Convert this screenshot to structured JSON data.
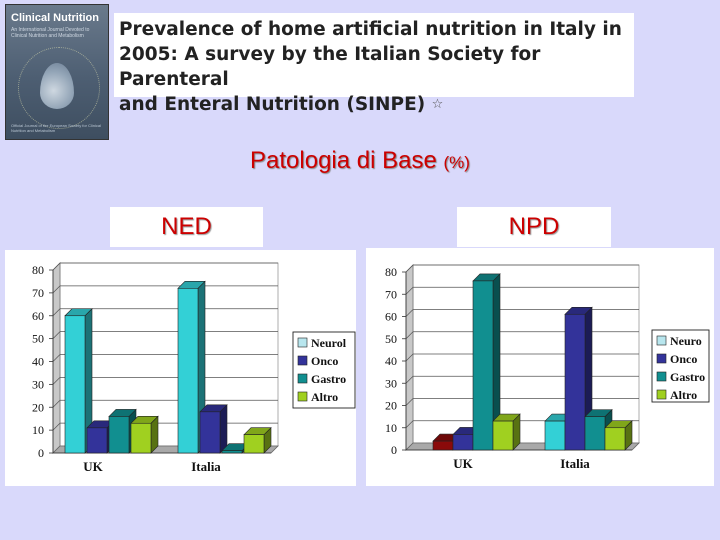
{
  "journal": {
    "title": "Clinical Nutrition",
    "subtitle": "An International Journal Devoted to Clinical Nutrition and Metabolism",
    "footer": "Official Journal of the European Society for Clinical Nutrition and Metabolism"
  },
  "header": {
    "title_lines": [
      "Prevalence of home artificial nutrition in Italy in",
      "2005: A survey by the Italian Society for Parenteral",
      "and Enteral Nutrition (SINPE)"
    ],
    "footnote_symbol": "☆"
  },
  "section": {
    "title": "Patologia di Base",
    "unit": "(%)"
  },
  "panels": {
    "left_label": "NED",
    "right_label": "NPD"
  },
  "colors": {
    "Neuro": "#b8e6ee",
    "Onco": "#33339a",
    "Gastro": "#118f90",
    "Altro": "#a0d020",
    "Dark red": "#8a0a0a",
    "Cyan": "#33d0d6"
  },
  "chart_data": [
    {
      "type": "bar",
      "categories": [
        "UK",
        "Italia"
      ],
      "legend": [
        "Neurol",
        "Onco",
        "Gastro",
        "Altro"
      ],
      "series": [
        {
          "values": [
            60,
            72
          ],
          "color_key": "Cyan"
        },
        {
          "values": [
            11,
            18
          ],
          "color_key": "Onco"
        },
        {
          "values": [
            16,
            1
          ],
          "color_key": "Gastro"
        },
        {
          "values": [
            13,
            8
          ],
          "color_key": "Altro"
        }
      ],
      "yticks": [
        "0",
        "10",
        "20",
        "30",
        "40",
        "50",
        "60",
        "70",
        "80"
      ],
      "ylim": [
        0,
        80
      ],
      "grid": true,
      "legend_position": "right"
    },
    {
      "type": "bar",
      "categories": [
        "UK",
        "Italia"
      ],
      "legend": [
        "Neuro",
        "Onco",
        "Gastro",
        "Altro"
      ],
      "series": [
        {
          "values": [
            4,
            13
          ],
          "color_key": "Dark red|Cyan"
        },
        {
          "values": [
            7,
            61
          ],
          "color_key": "Onco"
        },
        {
          "values": [
            76,
            15
          ],
          "color_key": "Gastro"
        },
        {
          "values": [
            13,
            10
          ],
          "color_key": "Altro"
        }
      ],
      "yticks": [
        "0",
        "10",
        "20",
        "30",
        "40",
        "50",
        "60",
        "70",
        "80"
      ],
      "ylim": [
        0,
        80
      ],
      "grid": true,
      "legend_position": "right"
    }
  ]
}
